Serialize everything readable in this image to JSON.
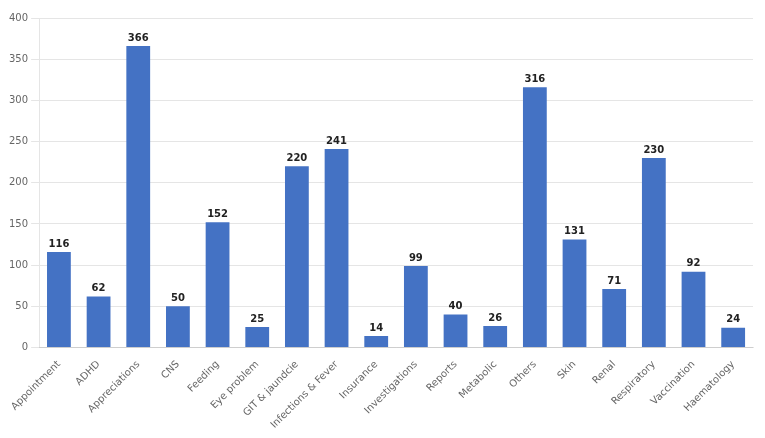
{
  "chart_data": {
    "type": "bar",
    "categories": [
      "Appointment",
      "ADHD",
      "Appreciations",
      "CNS",
      "Feeding",
      "Eye problem",
      "GIT & jaundcie",
      "Infections & Fever",
      "Insurance",
      "Investigations",
      "Reports",
      "Metabolic",
      "Others",
      "Skin",
      "Renal",
      "Respiratory",
      "Vaccination",
      "Haematology"
    ],
    "values": [
      116,
      62,
      366,
      50,
      152,
      25,
      220,
      241,
      14,
      99,
      40,
      26,
      316,
      131,
      71,
      230,
      92,
      24
    ],
    "color": "#4472C4",
    "ylim": [
      0,
      400
    ],
    "yticks": [
      0,
      50,
      100,
      150,
      200,
      250,
      300,
      350,
      400
    ],
    "grid": true,
    "data_labels": true
  }
}
